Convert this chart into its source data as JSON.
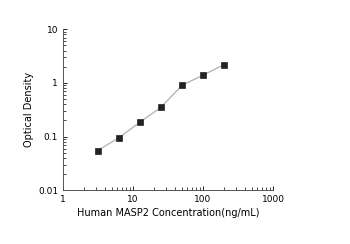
{
  "x": [
    3.125,
    6.25,
    12.5,
    25,
    50,
    100,
    200
  ],
  "y": [
    0.055,
    0.095,
    0.185,
    0.35,
    0.9,
    1.4,
    2.2
  ],
  "xlabel": "Human MASP2 Concentration(ng/mL)",
  "ylabel": "Optical Density",
  "xlim": [
    1,
    1000
  ],
  "ylim": [
    0.01,
    10
  ],
  "xticks": [
    1,
    10,
    100,
    1000
  ],
  "yticks": [
    0.01,
    0.1,
    1,
    10
  ],
  "line_color": "#b0b0b0",
  "marker_color": "#222222",
  "marker": "s",
  "marker_size": 4,
  "line_width": 0.9,
  "bg_color": "#ffffff"
}
